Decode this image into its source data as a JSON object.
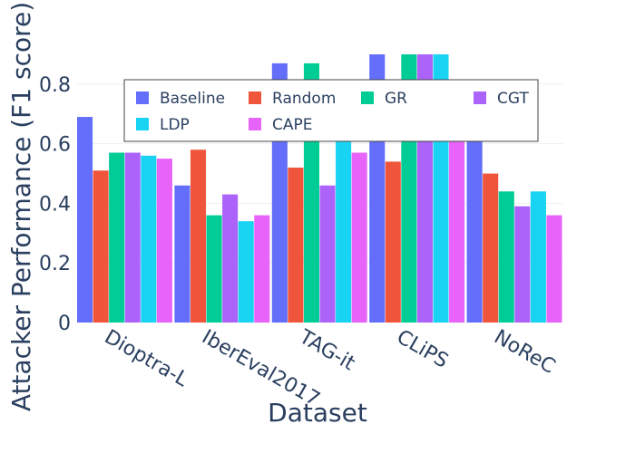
{
  "chart_data": {
    "type": "bar",
    "xlabel": "Dataset",
    "ylabel": "Attacker Performance (F1 score)",
    "categories": [
      "Dioptra-L",
      "IberEval2017",
      "TAG-it",
      "CLiPS",
      "NoReC"
    ],
    "ylim": [
      0,
      0.9
    ],
    "yticks": [
      0,
      0.2,
      0.4,
      0.6,
      0.8
    ],
    "ytick_labels": [
      "0",
      "0.2",
      "0.4",
      "0.6",
      "0.8"
    ],
    "grid": true,
    "legend_position": "top-center",
    "series": [
      {
        "name": "Baseline",
        "color": "#636efa",
        "values": [
          0.69,
          0.46,
          0.87,
          0.9,
          0.62
        ]
      },
      {
        "name": "Random",
        "color": "#ef553b",
        "values": [
          0.51,
          0.58,
          0.52,
          0.54,
          0.5
        ]
      },
      {
        "name": "GR",
        "color": "#00cc96",
        "values": [
          0.57,
          0.36,
          0.87,
          0.9,
          0.44
        ]
      },
      {
        "name": "CGT",
        "color": "#ab63fa",
        "values": [
          0.57,
          0.43,
          0.46,
          0.9,
          0.39
        ]
      },
      {
        "name": "LDP",
        "color": "#19d3f3",
        "values": [
          0.56,
          0.34,
          0.62,
          0.9,
          0.44
        ]
      },
      {
        "name": "CAPE",
        "color": "#e763fa",
        "values": [
          0.55,
          0.36,
          0.57,
          0.63,
          0.36
        ]
      }
    ],
    "legend_order": [
      "Baseline",
      "Random",
      "GR",
      "CGT",
      "LDP",
      "CAPE"
    ]
  }
}
